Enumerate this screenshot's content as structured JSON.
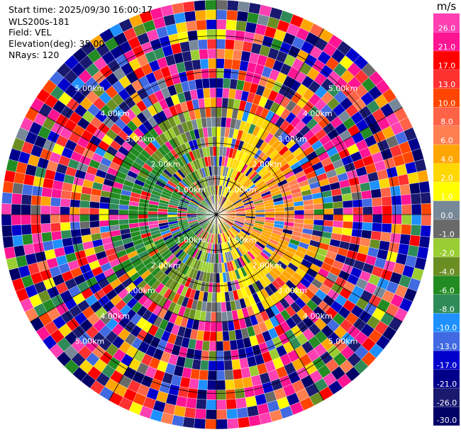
{
  "header": {
    "start_time": "Start time: 2025/09/30 16:00:17",
    "instrument": "WLS200s-181",
    "field": "Field: VEL",
    "elevation": "Elevation(deg): 35.00",
    "nrays": "NRays: 120"
  },
  "chart_data": {
    "type": "heatmap",
    "projection": "polar PPI",
    "field": "VEL",
    "units": "m/s",
    "nrays": 120,
    "max_range_km": 6.0,
    "range_rings_km": [
      1,
      2,
      3,
      4,
      5
    ],
    "range_ring_labels": [
      "1.00km",
      "2.00km",
      "3.00km",
      "4.00km",
      "5.00km"
    ],
    "spokes_deg": [
      0,
      30,
      60,
      90,
      120,
      150,
      180,
      210,
      240,
      270,
      300,
      330
    ],
    "colorbar": {
      "unit_label": "m/s",
      "ticks": [
        "26.0",
        "21.0",
        "17.0",
        "13.0",
        "10.0",
        "8.0",
        "6.0",
        "4.0",
        "2.0",
        "1.0",
        "0.0",
        "-1.0",
        "-2.0",
        "-4.0",
        "-6.0",
        "-8.0",
        "-10.0",
        "-13.0",
        "-17.0",
        "-21.0",
        "-26.0",
        "-30.0"
      ],
      "bins": [
        {
          "min": 26,
          "max": 30,
          "color": "#ff3fb2"
        },
        {
          "min": 21,
          "max": 26,
          "color": "#ff1493"
        },
        {
          "min": 17,
          "max": 21,
          "color": "#ff0000"
        },
        {
          "min": 13,
          "max": 17,
          "color": "#ff3030"
        },
        {
          "min": 10,
          "max": 13,
          "color": "#ff4500"
        },
        {
          "min": 8,
          "max": 10,
          "color": "#ff6347"
        },
        {
          "min": 6,
          "max": 8,
          "color": "#ff7f50"
        },
        {
          "min": 4,
          "max": 6,
          "color": "#ffa500"
        },
        {
          "min": 2,
          "max": 4,
          "color": "#ffd700"
        },
        {
          "min": 1,
          "max": 2,
          "color": "#ffff00"
        },
        {
          "min": 0,
          "max": 1,
          "color": "#778899"
        },
        {
          "min": -1,
          "max": 0,
          "color": "#696969"
        },
        {
          "min": -2,
          "max": -1,
          "color": "#9acd32"
        },
        {
          "min": -4,
          "max": -2,
          "color": "#6b8e23"
        },
        {
          "min": -6,
          "max": -4,
          "color": "#228b22"
        },
        {
          "min": -8,
          "max": -6,
          "color": "#2e8b57"
        },
        {
          "min": -10,
          "max": -8,
          "color": "#1e90ff"
        },
        {
          "min": -13,
          "max": -10,
          "color": "#4169e1"
        },
        {
          "min": -17,
          "max": -13,
          "color": "#0000cd"
        },
        {
          "min": -21,
          "max": -17,
          "color": "#00008b"
        },
        {
          "min": -26,
          "max": -21,
          "color": "#191970"
        },
        {
          "min": -30,
          "max": -26,
          "color": "#000066"
        }
      ]
    }
  }
}
